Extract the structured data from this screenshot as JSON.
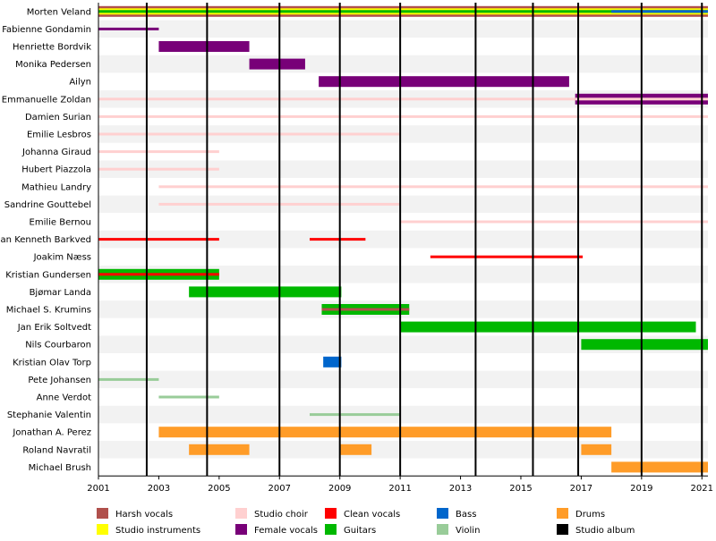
{
  "chart_data": {
    "type": "timeline",
    "title": "",
    "x_range": [
      2001,
      2021.2
    ],
    "x_ticks": [
      "2001",
      "2003",
      "2005",
      "2007",
      "2009",
      "2011",
      "2013",
      "2015",
      "2017",
      "2019",
      "2021"
    ],
    "album_years": [
      2002.6,
      2004.6,
      2007.0,
      2009.0,
      2011.0,
      2013.5,
      2015.4,
      2016.9,
      2019.0,
      2021.0
    ],
    "roles": {
      "harsh": {
        "label": "Harsh vocals",
        "color": "#b0504c"
      },
      "instr": {
        "label": "Studio instruments",
        "color": "#ffff00"
      },
      "choir": {
        "label": "Studio choir",
        "color": "#ffd0d0"
      },
      "female": {
        "label": "Female vocals",
        "color": "#780078"
      },
      "clean": {
        "label": "Clean vocals",
        "color": "#ff0000"
      },
      "guitars": {
        "label": "Guitars",
        "color": "#00b800"
      },
      "bass": {
        "label": "Bass",
        "color": "#0066cc"
      },
      "violin": {
        "label": "Violin",
        "color": "#99cc99"
      },
      "drums": {
        "label": "Drums",
        "color": "#ff9c28"
      },
      "album": {
        "label": "Studio album",
        "color": "#000000"
      }
    },
    "legend": [
      {
        "role": "harsh",
        "label": "Harsh vocals"
      },
      {
        "role": "instr",
        "label": "Studio instruments"
      },
      {
        "role": "choir",
        "label": "Studio choir"
      },
      {
        "role": "female",
        "label": "Female vocals"
      },
      {
        "role": "clean",
        "label": "Clean vocals"
      },
      {
        "role": "guitars",
        "label": "Guitars"
      },
      {
        "role": "bass",
        "label": "Bass"
      },
      {
        "role": "violin",
        "label": "Violin"
      },
      {
        "role": "drums",
        "label": "Drums"
      },
      {
        "role": "album",
        "label": "Studio album"
      }
    ],
    "members": [
      {
        "name": "Morten Veland",
        "bars": [
          {
            "role": "harsh",
            "start": 2001,
            "end": 2021.2,
            "size": "full"
          },
          {
            "role": "instr",
            "start": 2001,
            "end": 2021.2,
            "size": "mid"
          },
          {
            "role": "guitars",
            "start": 2001,
            "end": 2021.2,
            "size": "thin"
          },
          {
            "role": "bass",
            "start": 2018,
            "end": 2021.2,
            "size": "thin"
          }
        ]
      },
      {
        "name": "Fabienne Gondamin",
        "bars": [
          {
            "role": "female",
            "start": 2001,
            "end": 2003.0,
            "size": "thin"
          }
        ]
      },
      {
        "name": "Henriette Bordvik",
        "bars": [
          {
            "role": "female",
            "start": 2003.0,
            "end": 2006.0,
            "size": "full"
          }
        ]
      },
      {
        "name": "Monika Pedersen",
        "bars": [
          {
            "role": "female",
            "start": 2006.0,
            "end": 2007.85,
            "size": "full"
          }
        ]
      },
      {
        "name": "Ailyn",
        "bars": [
          {
            "role": "female",
            "start": 2008.3,
            "end": 2016.6,
            "size": "full"
          }
        ]
      },
      {
        "name": "Emmanuelle Zoldan",
        "bars": [
          {
            "role": "choir",
            "start": 2001,
            "end": 2016.8,
            "size": "thin"
          },
          {
            "role": "female",
            "start": 2016.8,
            "end": 2021.2,
            "size": "full"
          },
          {
            "role": "choir",
            "start": 2016.8,
            "end": 2021.2,
            "size": "thin"
          }
        ]
      },
      {
        "name": "Damien Surian",
        "bars": [
          {
            "role": "choir",
            "start": 2001,
            "end": 2021.2,
            "size": "thin"
          }
        ]
      },
      {
        "name": "Emilie Lesbros",
        "bars": [
          {
            "role": "choir",
            "start": 2001,
            "end": 2011.0,
            "size": "thin"
          }
        ]
      },
      {
        "name": "Johanna Giraud",
        "bars": [
          {
            "role": "choir",
            "start": 2001,
            "end": 2005.0,
            "size": "thin"
          }
        ]
      },
      {
        "name": "Hubert Piazzola",
        "bars": [
          {
            "role": "choir",
            "start": 2001,
            "end": 2005.0,
            "size": "thin"
          }
        ]
      },
      {
        "name": "Mathieu Landry",
        "bars": [
          {
            "role": "choir",
            "start": 2003.0,
            "end": 2021.2,
            "size": "thin"
          }
        ]
      },
      {
        "name": "Sandrine Gouttebel",
        "bars": [
          {
            "role": "choir",
            "start": 2003.0,
            "end": 2011.0,
            "size": "thin"
          }
        ]
      },
      {
        "name": "Emilie Bernou",
        "bars": [
          {
            "role": "choir",
            "start": 2011.0,
            "end": 2021.2,
            "size": "thin"
          }
        ]
      },
      {
        "name": "Jan Kenneth Barkved",
        "bars": [
          {
            "role": "clean",
            "start": 2001,
            "end": 2005.0,
            "size": "thin"
          },
          {
            "role": "clean",
            "start": 2008.0,
            "end": 2009.85,
            "size": "thin"
          }
        ]
      },
      {
        "name": "Joakim Næss",
        "bars": [
          {
            "role": "clean",
            "start": 2012.0,
            "end": 2017.05,
            "size": "thin"
          }
        ]
      },
      {
        "name": "Kristian Gundersen",
        "bars": [
          {
            "role": "guitars",
            "start": 2001,
            "end": 2005.0,
            "size": "full"
          },
          {
            "role": "clean",
            "start": 2001,
            "end": 2005.0,
            "size": "thin"
          }
        ]
      },
      {
        "name": "Bjømar Landa",
        "bars": [
          {
            "role": "guitars",
            "start": 2004.0,
            "end": 2009.05,
            "size": "full"
          }
        ]
      },
      {
        "name": "Michael S. Krumins",
        "bars": [
          {
            "role": "guitars",
            "start": 2008.4,
            "end": 2011.3,
            "size": "full"
          },
          {
            "role": "harsh",
            "start": 2008.4,
            "end": 2011.3,
            "size": "thin"
          }
        ]
      },
      {
        "name": "Jan Erik Soltvedt",
        "bars": [
          {
            "role": "guitars",
            "start": 2011.0,
            "end": 2020.8,
            "size": "full"
          }
        ]
      },
      {
        "name": "Nils Courbaron",
        "bars": [
          {
            "role": "guitars",
            "start": 2017.0,
            "end": 2021.2,
            "size": "full"
          }
        ]
      },
      {
        "name": "Kristian Olav Torp",
        "bars": [
          {
            "role": "bass",
            "start": 2008.45,
            "end": 2009.05,
            "size": "full"
          }
        ]
      },
      {
        "name": "Pete Johansen",
        "bars": [
          {
            "role": "violin",
            "start": 2001,
            "end": 2003.0,
            "size": "thin"
          }
        ]
      },
      {
        "name": "Anne Verdot",
        "bars": [
          {
            "role": "violin",
            "start": 2003.0,
            "end": 2005.0,
            "size": "thin"
          }
        ]
      },
      {
        "name": "Stephanie Valentin",
        "bars": [
          {
            "role": "violin",
            "start": 2008.0,
            "end": 2011.0,
            "size": "thin"
          }
        ]
      },
      {
        "name": "Jonathan A. Perez",
        "bars": [
          {
            "role": "drums",
            "start": 2003.0,
            "end": 2018.0,
            "size": "full"
          }
        ]
      },
      {
        "name": "Roland Navratil",
        "bars": [
          {
            "role": "drums",
            "start": 2004.0,
            "end": 2006.0,
            "size": "full"
          },
          {
            "role": "drums",
            "start": 2009.0,
            "end": 2010.05,
            "size": "full"
          },
          {
            "role": "drums",
            "start": 2017.0,
            "end": 2018.0,
            "size": "full"
          }
        ]
      },
      {
        "name": "Michael Brush",
        "bars": [
          {
            "role": "drums",
            "start": 2018.0,
            "end": 2021.2,
            "size": "full"
          }
        ]
      }
    ]
  }
}
